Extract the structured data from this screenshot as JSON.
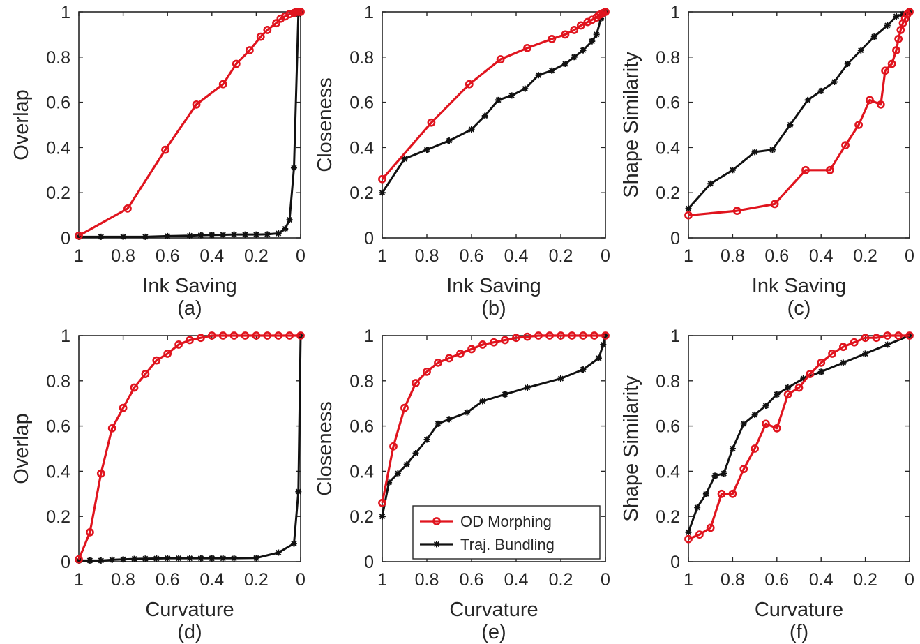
{
  "colors": {
    "od": "#e0141e",
    "tb": "#111111",
    "axis": "#262626"
  },
  "legend": {
    "entries": [
      "OD Morphing",
      "Traj. Bundling"
    ],
    "placement": "panel-e-bottom-right"
  },
  "chart_data": [
    {
      "type": "line",
      "caption": "(a)",
      "xlabel": "Ink Saving",
      "ylabel": "Overlap",
      "xlim": [
        1,
        0
      ],
      "ylim": [
        0,
        1
      ],
      "xticks": [
        "1",
        "0.8",
        "0.6",
        "0.4",
        "0.2",
        "0"
      ],
      "yticks": [
        "0",
        "0.2",
        "0.4",
        "0.6",
        "0.8",
        "1"
      ],
      "series": [
        {
          "name": "OD Morphing",
          "x": [
            1,
            0.78,
            0.61,
            0.47,
            0.35,
            0.29,
            0.23,
            0.18,
            0.15,
            0.11,
            0.09,
            0.07,
            0.05,
            0.03,
            0.02,
            0.01,
            0
          ],
          "y": [
            0.01,
            0.13,
            0.39,
            0.59,
            0.68,
            0.77,
            0.83,
            0.89,
            0.92,
            0.95,
            0.97,
            0.98,
            0.99,
            0.995,
            1.0,
            1.0,
            1.0
          ]
        },
        {
          "name": "Traj. Bundling",
          "x": [
            1,
            0.9,
            0.8,
            0.7,
            0.6,
            0.5,
            0.45,
            0.4,
            0.35,
            0.3,
            0.25,
            0.2,
            0.15,
            0.1,
            0.07,
            0.05,
            0.03,
            0.01,
            0
          ],
          "y": [
            0.005,
            0.005,
            0.005,
            0.005,
            0.008,
            0.01,
            0.012,
            0.013,
            0.014,
            0.015,
            0.015,
            0.015,
            0.016,
            0.02,
            0.04,
            0.08,
            0.31,
            0.99,
            1.0
          ]
        }
      ]
    },
    {
      "type": "line",
      "caption": "(b)",
      "xlabel": "Ink Saving",
      "ylabel": "Closeness",
      "xlim": [
        1,
        0
      ],
      "ylim": [
        0,
        1
      ],
      "xticks": [
        "1",
        "0.8",
        "0.6",
        "0.4",
        "0.2",
        "0"
      ],
      "yticks": [
        "0",
        "0.2",
        "0.4",
        "0.6",
        "0.8",
        "1"
      ],
      "series": [
        {
          "name": "OD Morphing",
          "x": [
            1,
            0.78,
            0.61,
            0.47,
            0.35,
            0.24,
            0.18,
            0.14,
            0.11,
            0.08,
            0.06,
            0.04,
            0.03,
            0.02,
            0.01,
            0
          ],
          "y": [
            0.26,
            0.51,
            0.68,
            0.79,
            0.84,
            0.88,
            0.9,
            0.92,
            0.94,
            0.955,
            0.965,
            0.975,
            0.985,
            0.99,
            0.995,
            1.0
          ]
        },
        {
          "name": "Traj. Bundling",
          "x": [
            1,
            0.9,
            0.8,
            0.7,
            0.6,
            0.54,
            0.48,
            0.42,
            0.36,
            0.3,
            0.24,
            0.18,
            0.14,
            0.1,
            0.06,
            0.04,
            0.02,
            0
          ],
          "y": [
            0.2,
            0.35,
            0.39,
            0.43,
            0.48,
            0.54,
            0.61,
            0.63,
            0.66,
            0.72,
            0.74,
            0.77,
            0.8,
            0.83,
            0.87,
            0.9,
            0.97,
            1.0
          ]
        }
      ]
    },
    {
      "type": "line",
      "caption": "(c)",
      "xlabel": "Ink Saving",
      "ylabel": "Shape Similarity",
      "xlim": [
        1,
        0
      ],
      "ylim": [
        0,
        1
      ],
      "xticks": [
        "1",
        "0.8",
        "0.6",
        "0.4",
        "0.2",
        "0"
      ],
      "yticks": [
        "0",
        "0.2",
        "0.4",
        "0.6",
        "0.8",
        "1"
      ],
      "series": [
        {
          "name": "OD Morphing",
          "x": [
            1,
            0.78,
            0.61,
            0.47,
            0.36,
            0.29,
            0.23,
            0.18,
            0.13,
            0.11,
            0.08,
            0.06,
            0.05,
            0.04,
            0.03,
            0.02,
            0.01,
            0
          ],
          "y": [
            0.1,
            0.12,
            0.15,
            0.3,
            0.3,
            0.41,
            0.5,
            0.61,
            0.59,
            0.74,
            0.77,
            0.83,
            0.88,
            0.92,
            0.95,
            0.97,
            0.99,
            1.0
          ]
        },
        {
          "name": "Traj. Bundling",
          "x": [
            1,
            0.9,
            0.8,
            0.7,
            0.62,
            0.54,
            0.46,
            0.4,
            0.34,
            0.28,
            0.22,
            0.16,
            0.1,
            0.06,
            0.03,
            0
          ],
          "y": [
            0.13,
            0.24,
            0.3,
            0.38,
            0.39,
            0.5,
            0.61,
            0.65,
            0.69,
            0.77,
            0.83,
            0.89,
            0.94,
            0.98,
            0.99,
            1.0
          ]
        }
      ]
    },
    {
      "type": "line",
      "caption": "(d)",
      "xlabel": "Curvature",
      "ylabel": "Overlap",
      "xlim": [
        1,
        0
      ],
      "ylim": [
        0,
        1
      ],
      "xticks": [
        "1",
        "0.8",
        "0.6",
        "0.4",
        "0.2",
        "0"
      ],
      "yticks": [
        "0",
        "0.2",
        "0.4",
        "0.6",
        "0.8",
        "1"
      ],
      "series": [
        {
          "name": "OD Morphing",
          "x": [
            1,
            0.95,
            0.9,
            0.85,
            0.8,
            0.75,
            0.7,
            0.65,
            0.6,
            0.55,
            0.5,
            0.45,
            0.4,
            0.35,
            0.3,
            0.25,
            0.2,
            0.15,
            0.1,
            0.05,
            0
          ],
          "y": [
            0.01,
            0.13,
            0.39,
            0.59,
            0.68,
            0.77,
            0.83,
            0.89,
            0.92,
            0.96,
            0.98,
            0.99,
            1.0,
            1.0,
            1.0,
            1.0,
            1.0,
            1.0,
            1.0,
            1.0,
            1.0
          ]
        },
        {
          "name": "Traj. Bundling",
          "x": [
            1,
            0.95,
            0.9,
            0.85,
            0.8,
            0.75,
            0.7,
            0.65,
            0.6,
            0.55,
            0.5,
            0.45,
            0.4,
            0.35,
            0.3,
            0.2,
            0.1,
            0.03,
            0.01,
            0
          ],
          "y": [
            0.005,
            0.005,
            0.005,
            0.008,
            0.01,
            0.012,
            0.013,
            0.014,
            0.015,
            0.015,
            0.015,
            0.015,
            0.015,
            0.015,
            0.015,
            0.016,
            0.04,
            0.08,
            0.31,
            1.0
          ]
        }
      ]
    },
    {
      "type": "line",
      "caption": "(e)",
      "xlabel": "Curvature",
      "ylabel": "Closeness",
      "xlim": [
        1,
        0
      ],
      "ylim": [
        0,
        1
      ],
      "xticks": [
        "1",
        "0.8",
        "0.6",
        "0.4",
        "0.2",
        "0"
      ],
      "yticks": [
        "0",
        "0.2",
        "0.4",
        "0.6",
        "0.8",
        "1"
      ],
      "series": [
        {
          "name": "OD Morphing",
          "x": [
            1,
            0.95,
            0.9,
            0.85,
            0.8,
            0.75,
            0.7,
            0.65,
            0.6,
            0.55,
            0.5,
            0.45,
            0.4,
            0.35,
            0.3,
            0.25,
            0.2,
            0.15,
            0.1,
            0.05,
            0
          ],
          "y": [
            0.26,
            0.51,
            0.68,
            0.79,
            0.84,
            0.88,
            0.9,
            0.92,
            0.94,
            0.96,
            0.97,
            0.98,
            0.99,
            0.995,
            1.0,
            1.0,
            1.0,
            1.0,
            1.0,
            1.0,
            1.0
          ]
        },
        {
          "name": "Traj. Bundling",
          "x": [
            1,
            0.97,
            0.93,
            0.89,
            0.85,
            0.8,
            0.75,
            0.7,
            0.62,
            0.55,
            0.45,
            0.35,
            0.2,
            0.1,
            0.03,
            0.01,
            0
          ],
          "y": [
            0.2,
            0.35,
            0.39,
            0.43,
            0.48,
            0.54,
            0.61,
            0.63,
            0.66,
            0.71,
            0.74,
            0.77,
            0.81,
            0.85,
            0.9,
            0.96,
            1.0
          ]
        }
      ]
    },
    {
      "type": "line",
      "caption": "(f)",
      "xlabel": "Curvature",
      "ylabel": "Shape Similarity",
      "xlim": [
        1,
        0
      ],
      "ylim": [
        0,
        1
      ],
      "xticks": [
        "1",
        "0.8",
        "0.6",
        "0.4",
        "0.2",
        "0"
      ],
      "yticks": [
        "0",
        "0.2",
        "0.4",
        "0.6",
        "0.8",
        "1"
      ],
      "series": [
        {
          "name": "OD Morphing",
          "x": [
            1,
            0.95,
            0.9,
            0.85,
            0.8,
            0.75,
            0.7,
            0.65,
            0.6,
            0.55,
            0.5,
            0.45,
            0.4,
            0.35,
            0.3,
            0.25,
            0.2,
            0.15,
            0.1,
            0.05,
            0
          ],
          "y": [
            0.1,
            0.12,
            0.15,
            0.3,
            0.3,
            0.41,
            0.5,
            0.61,
            0.59,
            0.74,
            0.77,
            0.83,
            0.88,
            0.92,
            0.95,
            0.97,
            0.99,
            0.99,
            1.0,
            1.0,
            1.0
          ]
        },
        {
          "name": "Traj. Bundling",
          "x": [
            1,
            0.96,
            0.92,
            0.88,
            0.84,
            0.8,
            0.75,
            0.7,
            0.65,
            0.6,
            0.55,
            0.48,
            0.4,
            0.3,
            0.2,
            0.1,
            0
          ],
          "y": [
            0.13,
            0.24,
            0.3,
            0.38,
            0.39,
            0.5,
            0.61,
            0.65,
            0.69,
            0.74,
            0.77,
            0.81,
            0.84,
            0.88,
            0.92,
            0.96,
            1.0
          ]
        }
      ]
    }
  ]
}
